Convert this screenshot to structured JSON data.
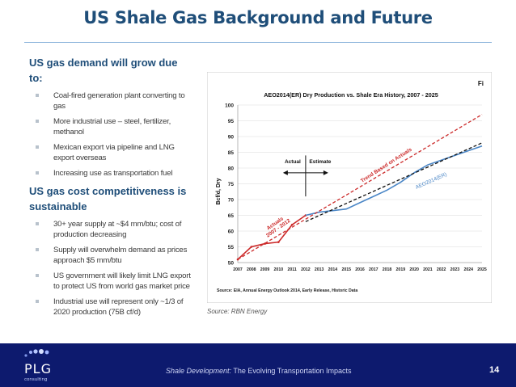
{
  "title": "US Shale Gas Background and Future",
  "left": {
    "heading1": "US gas demand will grow due to:",
    "bullets1": [
      "Coal-fired generation plant converting to gas",
      "More industrial use – steel, fertilizer, methanol",
      "Mexican export via pipeline and LNG export overseas",
      "Increasing use as transportation fuel"
    ],
    "heading2": "US gas cost competitiveness is sustainable",
    "bullets2": [
      "30+ year supply at ~$4 mm/btu; cost of production decreasing",
      "Supply will overwhelm demand as prices approach $5 mm/btu",
      "US government will likely limit LNG export to protect US from world gas market price",
      "Industrial use will represent only ~1/3 of 2020 production (75B cf/d)"
    ]
  },
  "chart_data": {
    "type": "line",
    "title": "AEO2014(ER) Dry Production vs. Shale Era History, 2007 - 2025",
    "corner_label": "Fi",
    "ylabel": "Bcf/d, Dry",
    "xlabel": "",
    "ylim": [
      50,
      100
    ],
    "yticks": [
      50,
      55,
      60,
      65,
      70,
      75,
      80,
      85,
      90,
      95,
      100
    ],
    "categories": [
      "2007",
      "2008",
      "2009",
      "2010",
      "2011",
      "2012",
      "2013",
      "2014",
      "2015",
      "2016",
      "2017",
      "2018",
      "2019",
      "2020",
      "2021",
      "2022",
      "2023",
      "2024",
      "2025"
    ],
    "series": [
      {
        "name": "Actuals 2007 - 2012",
        "color": "#cc2a2a",
        "style": "solid",
        "x": [
          "2007",
          "2008",
          "2009",
          "2010",
          "2011",
          "2012"
        ],
        "values": [
          51,
          55,
          56,
          56.5,
          62,
          65
        ]
      },
      {
        "name": "AEO2014(ER)",
        "color": "#4a86c6",
        "style": "solid",
        "x": [
          "2012",
          "2013",
          "2014",
          "2015",
          "2016",
          "2017",
          "2018",
          "2019",
          "2020",
          "2021",
          "2022",
          "2023",
          "2024",
          "2025"
        ],
        "values": [
          65,
          66,
          66.5,
          67,
          69,
          71,
          73,
          75.5,
          78.5,
          81,
          82.5,
          84,
          85.5,
          87
        ]
      },
      {
        "name": "Trend Based on Actuals",
        "color": "#cc2a2a",
        "style": "dashed",
        "x": [
          "2007",
          "2025"
        ],
        "values": [
          51,
          97
        ]
      },
      {
        "name": "",
        "color": "#111111",
        "style": "dashed",
        "x": [
          "2012",
          "2025"
        ],
        "values": [
          63,
          88
        ]
      }
    ],
    "annotations": {
      "actual": "Actual",
      "estimate": "Estimate",
      "actuals_label": "Actuals 2007 - 2012",
      "trend_label": "Trend Based on Actuals",
      "aeo_label": "AEO2014(ER)"
    },
    "source": "Source:  EIA, Annual Energy Outlook 2014, Early Release, Historic Data"
  },
  "source_note": "Source:  RBN Energy",
  "footer": {
    "title_italic": "Shale Development:",
    "title_rest": " The Evolving Transportation Impacts",
    "page": "14",
    "logo_text": "PLG",
    "logo_sub": "consulting"
  }
}
